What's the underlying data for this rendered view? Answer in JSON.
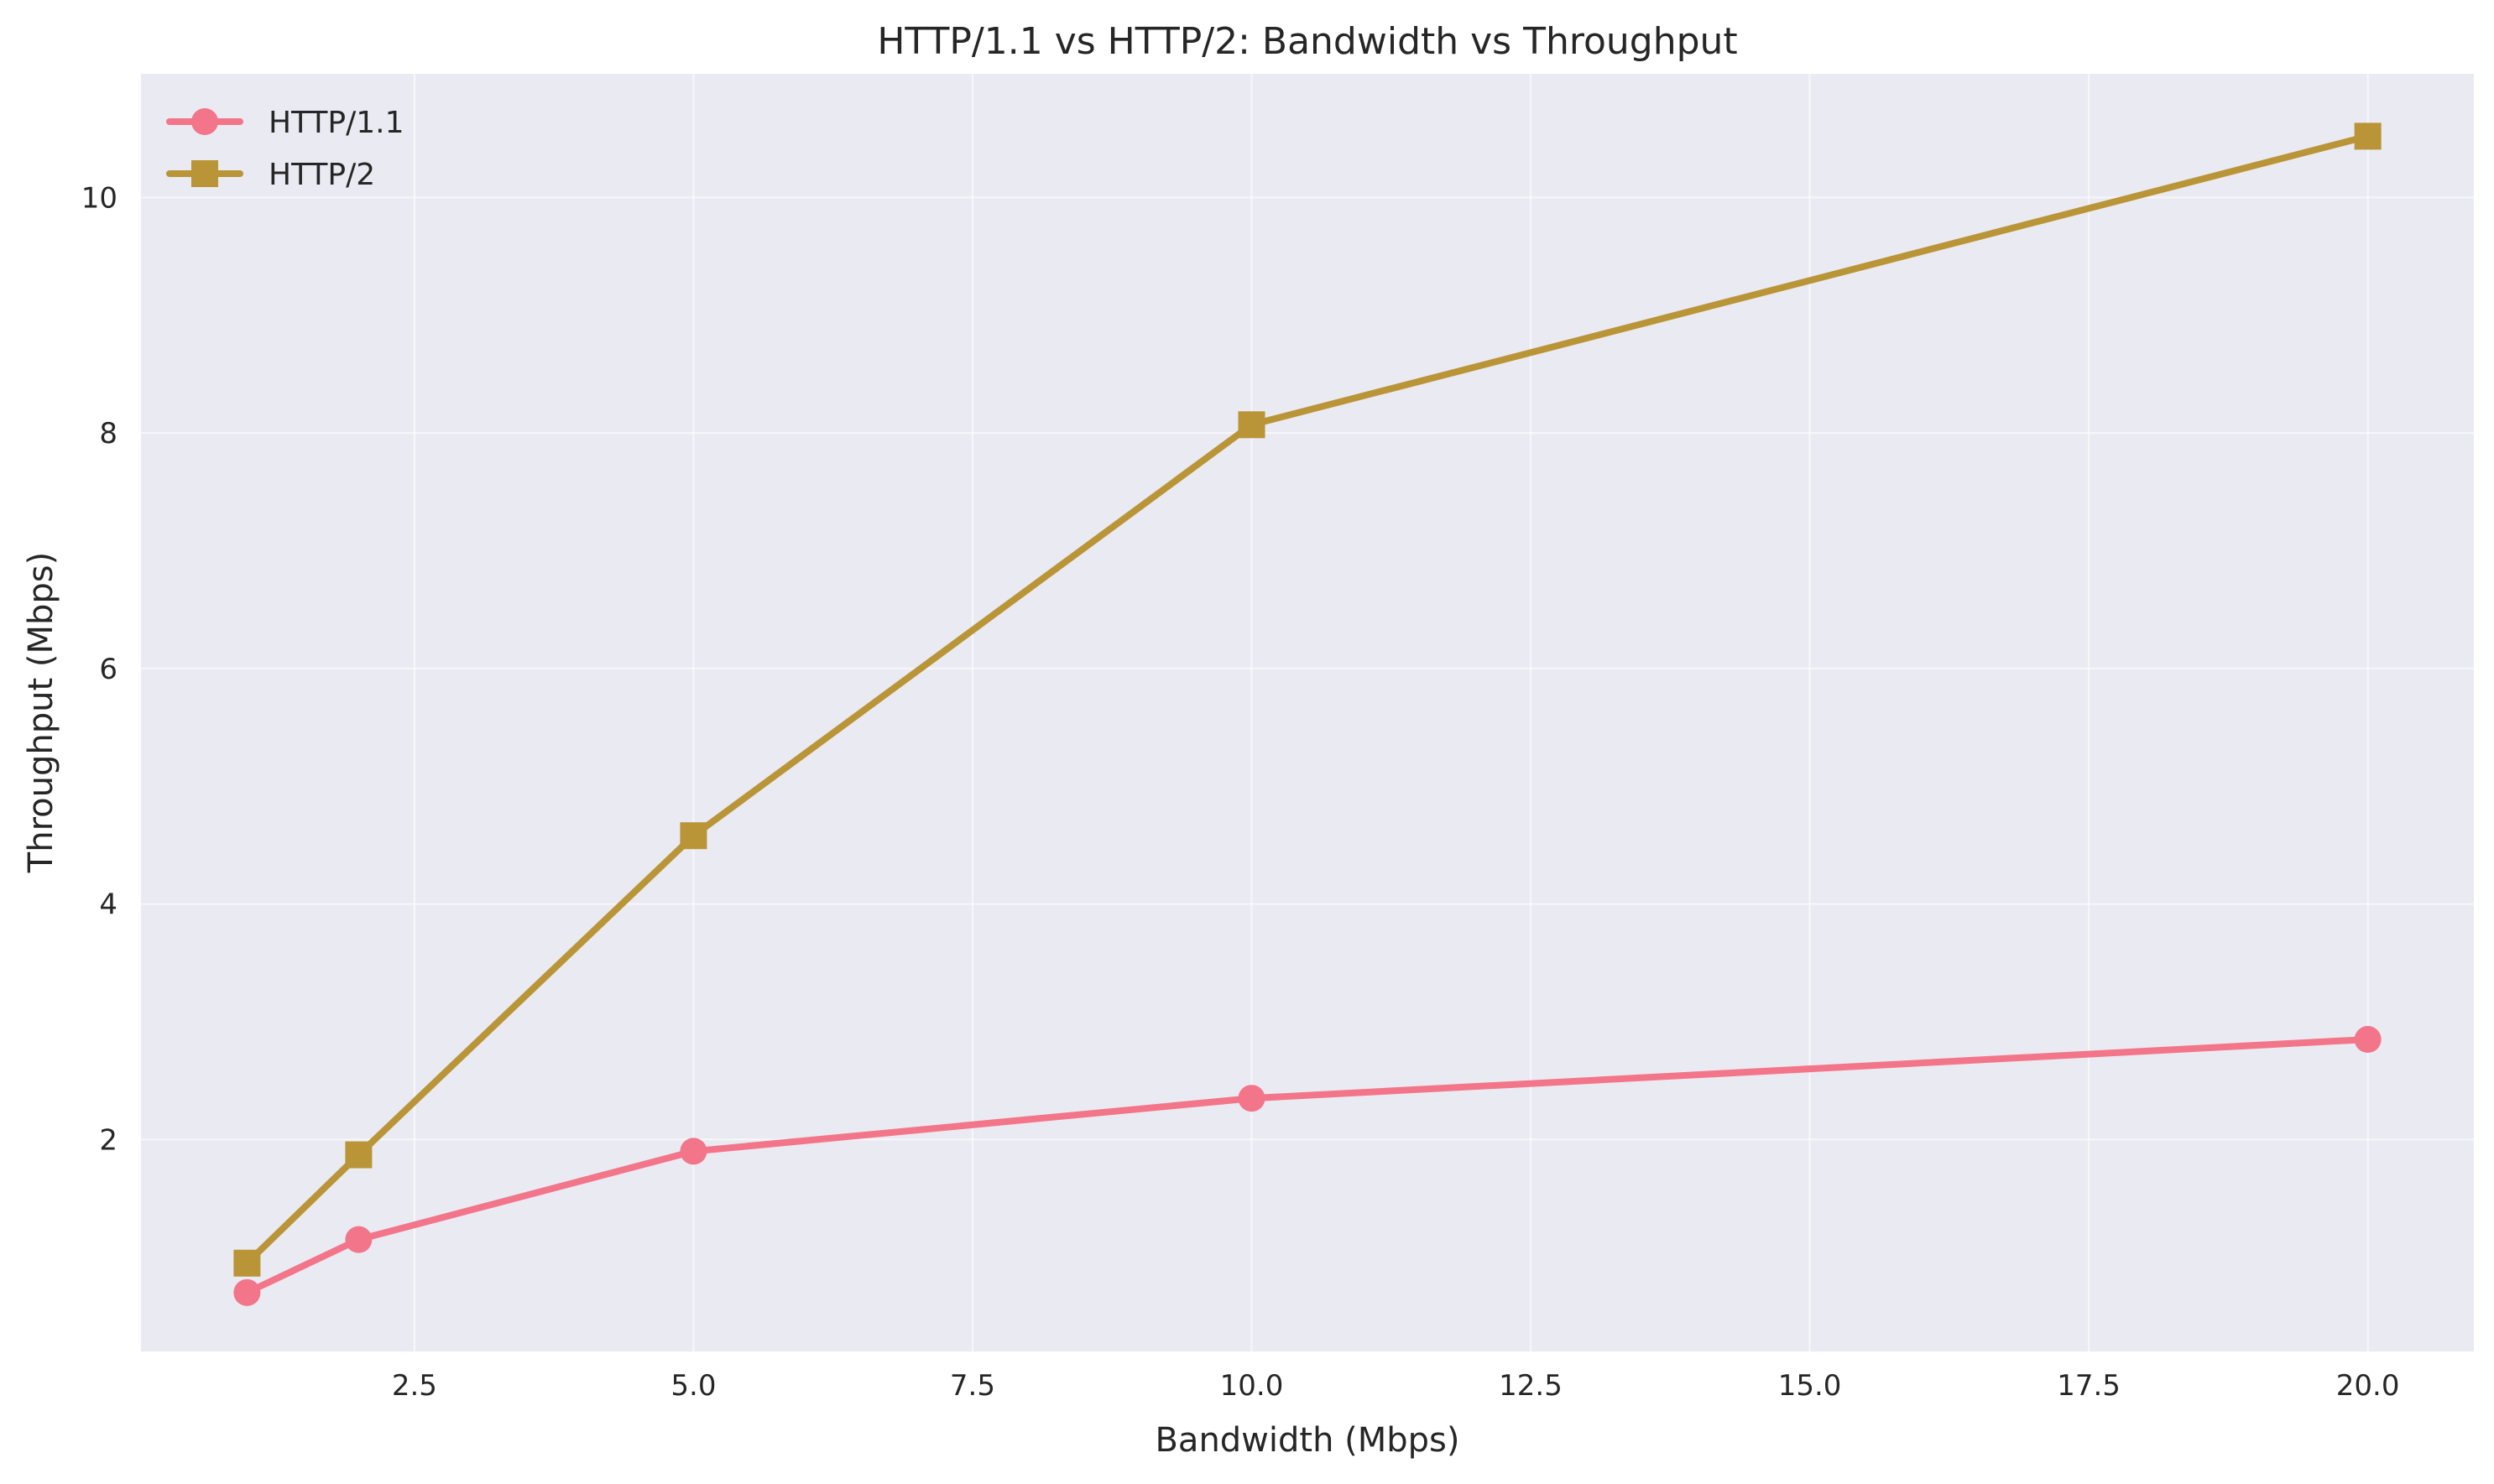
{
  "chart_data": {
    "type": "line",
    "title": "HTTP/1.1 vs HTTP/2: Bandwidth vs Throughput",
    "xlabel": "Bandwidth (Mbps)",
    "ylabel": "Throughput (Mbps)",
    "xlim": [
      0.05,
      20.95
    ],
    "ylim": [
      0.2,
      11.05
    ],
    "xticks": [
      2.5,
      5.0,
      7.5,
      10.0,
      12.5,
      15.0,
      17.5,
      20.0
    ],
    "xtick_labels": [
      "2.5",
      "5.0",
      "7.5",
      "10.0",
      "12.5",
      "15.0",
      "17.5",
      "20.0"
    ],
    "yticks": [
      2,
      4,
      6,
      8,
      10
    ],
    "ytick_labels": [
      "2",
      "4",
      "6",
      "8",
      "10"
    ],
    "grid": true,
    "background": "#eaeaf2",
    "legend_position": "top-left",
    "x": [
      1,
      2,
      5,
      10,
      20
    ],
    "series": [
      {
        "name": "HTTP/1.1",
        "values": [
          0.7,
          1.15,
          1.9,
          2.35,
          2.85
        ],
        "color": "#f37589",
        "marker": "circle"
      },
      {
        "name": "HTTP/2",
        "values": [
          0.95,
          1.87,
          4.58,
          8.07,
          10.52
        ],
        "color": "#b99537",
        "marker": "square"
      }
    ]
  }
}
